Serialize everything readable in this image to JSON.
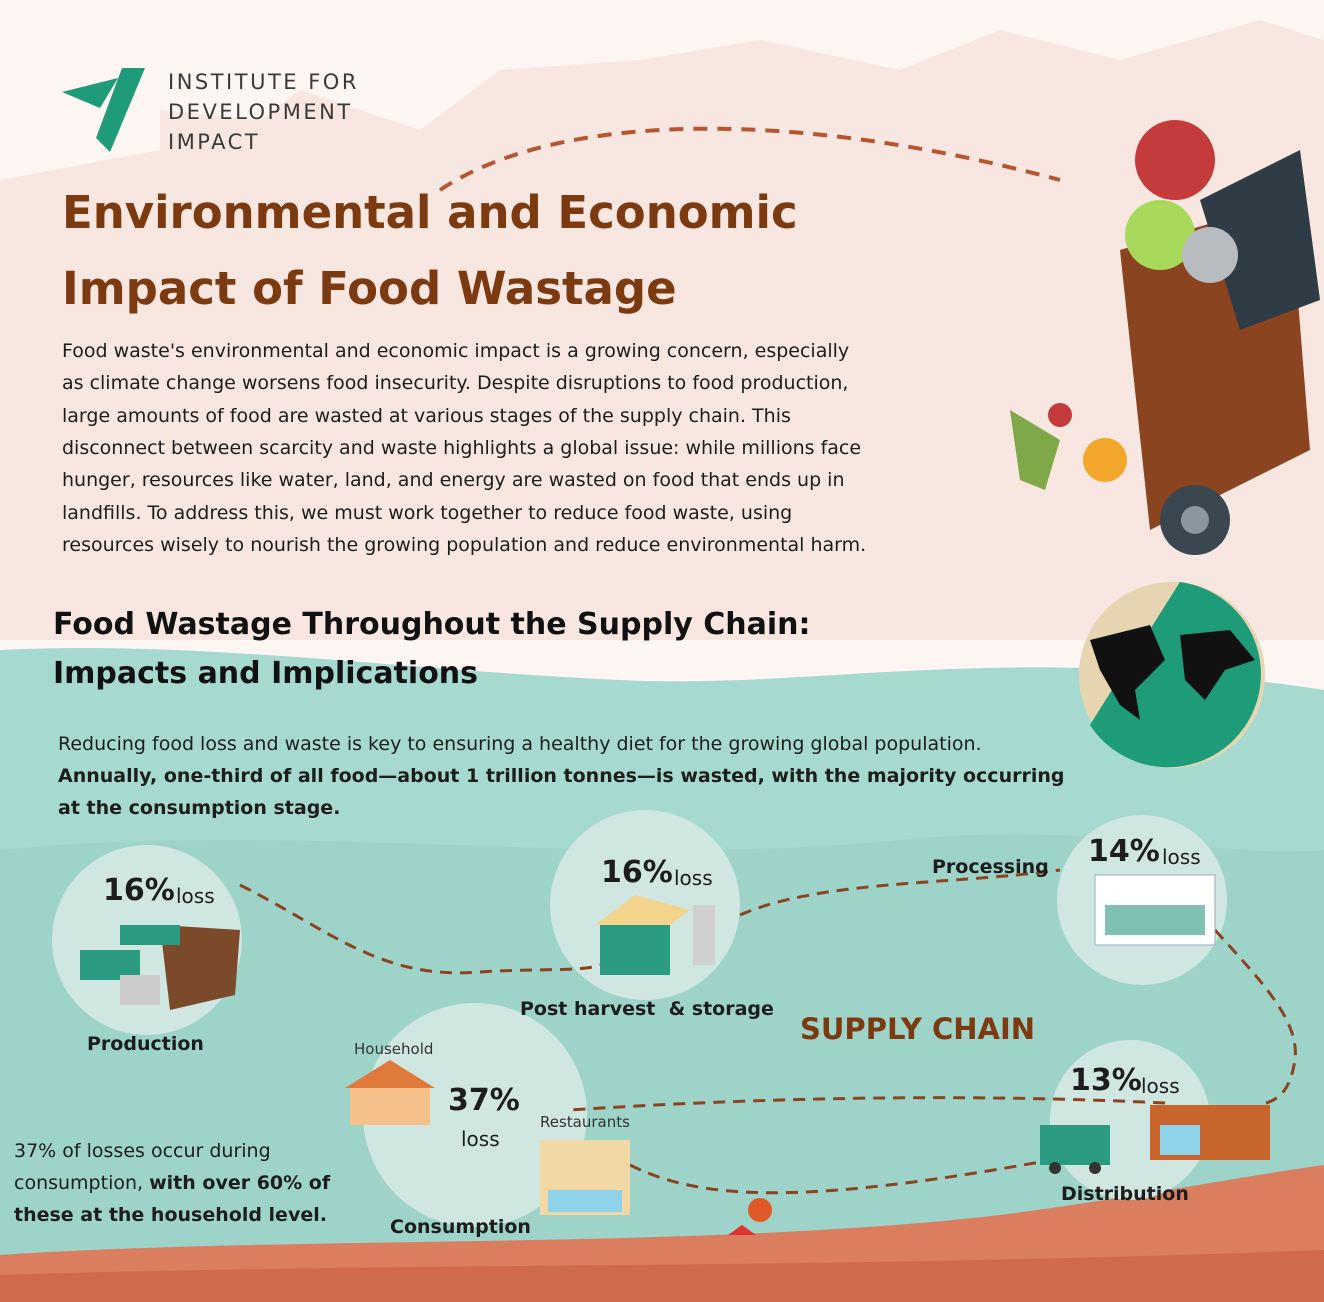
{
  "logo": {
    "lines": [
      "INSTITUTE FOR",
      "DEVELOPMENT",
      "IMPACT"
    ]
  },
  "title": {
    "lines": [
      "Environmental and Economic",
      "Impact of Food Wastage"
    ]
  },
  "intro": {
    "lines": [
      "Food waste's environmental and economic impact is a growing concern, especially",
      "as climate change worsens food insecurity. Despite disruptions to food production,",
      "large amounts of food are wasted at various stages of the supply chain. This",
      "disconnect between scarcity and waste highlights a global issue: while millions face",
      "hunger, resources like water, land, and energy are wasted on food that ends up in",
      "landfills. To address this, we must work together to reduce food waste, using",
      "resources wisely to nourish the growing population and reduce environmental harm."
    ]
  },
  "section": {
    "title_lines": [
      "Food Wastage Throughout the Supply Chain:",
      "Impacts and Implications"
    ],
    "text": "Reducing food loss and waste is key to ensuring a healthy diet for the growing global population.",
    "bold_lines": [
      "Annually, one-third of all food—about 1 trillion tonnes—is wasted, with the majority occurring",
      "at the consumption stage."
    ]
  },
  "stages": [
    {
      "label": "Production",
      "percent": "16%",
      "suffix": "loss"
    },
    {
      "label": "Post harvest  & storage",
      "percent": "16%",
      "suffix": "loss"
    },
    {
      "label": "Processing",
      "percent": "14%",
      "suffix": "loss"
    },
    {
      "label": "Distribution",
      "percent": "13%",
      "suffix": "loss"
    },
    {
      "label": "Consumption",
      "percent": "37%",
      "suffix": "loss"
    }
  ],
  "supply_chain_label": "SUPPLY CHAIN",
  "consumption_sublabels": [
    "Household",
    "Restaurants"
  ],
  "note": {
    "plain": [
      "37% of losses occur during",
      "consumption,"
    ],
    "bold": [
      "with over 60% of",
      "these at the household level."
    ]
  }
}
